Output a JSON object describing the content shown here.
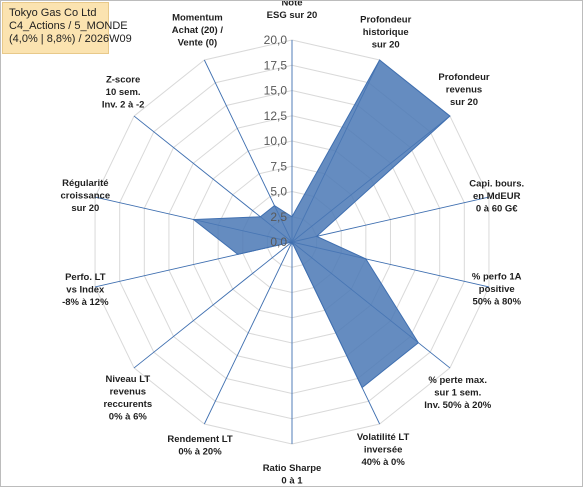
{
  "title_lines": [
    "Tokyo Gas Co Ltd",
    "C4_Actions / 5_MONDE",
    "(4,0% | 8,8%) / 2026W09"
  ],
  "colors": {
    "fill": "#4a78b5",
    "stroke": "#3f6fb0",
    "grid": "#d9d9d9",
    "spoke": "#3f6fb0",
    "title_bg": "#fbe3b0"
  },
  "chart_data": {
    "type": "radar",
    "rmin": 0,
    "rmax": 20,
    "ticks": [
      "0,0",
      "2,5",
      "5,0",
      "7,5",
      "10,0",
      "12,5",
      "15,0",
      "17,5",
      "20,0"
    ],
    "grid": true,
    "axes": [
      {
        "label": [
          "Note",
          "ESG sur 20"
        ],
        "value": 2.5
      },
      {
        "label": [
          "Profondeur",
          "historique",
          "sur 20"
        ],
        "value": 20
      },
      {
        "label": [
          "Profondeur",
          "revenus",
          "sur 20"
        ],
        "value": 20
      },
      {
        "label": [
          "Capi. bours.",
          "en MdEUR",
          "0 à 60 G€"
        ],
        "value": 2.5
      },
      {
        "label": [
          "% perfo 1A",
          "positive",
          "50% à 80%"
        ],
        "value": 7.5
      },
      {
        "label": [
          "% perte max.",
          "sur 1 sem.",
          "Inv. 50% à 20%"
        ],
        "value": 16
      },
      {
        "label": [
          "Volatilité LT",
          "inversée",
          "40% à 0%"
        ],
        "value": 16
      },
      {
        "label": [
          "Ratio Sharpe",
          "0 à 1"
        ],
        "value": 0
      },
      {
        "label": [
          "Rendement LT",
          "0% à 20%"
        ],
        "value": 0
      },
      {
        "label": [
          "Niveau LT",
          "revenus",
          "reccurents",
          "0% à 6%"
        ],
        "value": 0
      },
      {
        "label": [
          "Perfo. LT",
          "vs Index",
          "-8% à 12%"
        ],
        "value": 5.5
      },
      {
        "label": [
          "Régularité",
          "croissance",
          "sur 20"
        ],
        "value": 10
      },
      {
        "label": [
          "Z-score",
          "10 sem.",
          "Inv. 2 à -2"
        ],
        "value": 4
      },
      {
        "label": [
          "Momentum",
          "Achat (20) /",
          "Vente (0)"
        ],
        "value": 4
      }
    ]
  }
}
